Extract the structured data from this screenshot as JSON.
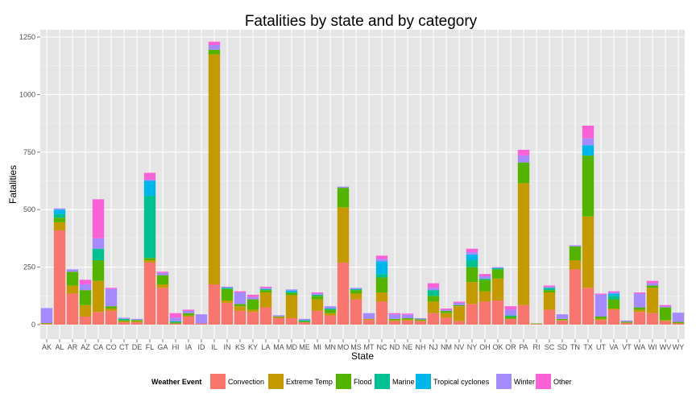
{
  "chart_data": {
    "type": "bar",
    "stacked": true,
    "title": "Fatalities by state and by category",
    "xlabel": "State",
    "ylabel": "Fatalities",
    "ylim": [
      0,
      1300
    ],
    "yticks": [
      0,
      250,
      500,
      750,
      1000,
      1250
    ],
    "grid": true,
    "legend_position": "bottom",
    "legend_title": "Weather Event",
    "categories": [
      "AK",
      "AL",
      "AR",
      "AZ",
      "CA",
      "CO",
      "CT",
      "DE",
      "FL",
      "GA",
      "HI",
      "IA",
      "ID",
      "IL",
      "IN",
      "KS",
      "KY",
      "LA",
      "MA",
      "MD",
      "ME",
      "MI",
      "MN",
      "MO",
      "MS",
      "MT",
      "NC",
      "ND",
      "NE",
      "NH",
      "NJ",
      "NM",
      "NV",
      "NY",
      "OH",
      "OK",
      "OR",
      "PA",
      "RI",
      "SC",
      "SD",
      "TN",
      "TX",
      "UT",
      "VA",
      "VT",
      "WA",
      "WI",
      "WV",
      "WY"
    ],
    "series": [
      {
        "name": "Convection",
        "color": "#F8766D",
        "values": [
          3,
          410,
          135,
          35,
          55,
          60,
          10,
          10,
          270,
          160,
          5,
          35,
          5,
          175,
          95,
          60,
          55,
          75,
          28,
          28,
          10,
          60,
          40,
          270,
          110,
          20,
          100,
          15,
          18,
          15,
          50,
          30,
          15,
          90,
          100,
          105,
          25,
          85,
          3,
          65,
          18,
          240,
          160,
          20,
          65,
          8,
          55,
          50,
          15,
          5
        ]
      },
      {
        "name": "Extreme Temp",
        "color": "#C49A00",
        "values": [
          2,
          35,
          35,
          50,
          135,
          10,
          5,
          5,
          10,
          15,
          0,
          5,
          0,
          1000,
          10,
          20,
          10,
          65,
          5,
          100,
          0,
          50,
          10,
          240,
          25,
          5,
          40,
          5,
          5,
          3,
          50,
          20,
          65,
          95,
          45,
          95,
          0,
          530,
          0,
          75,
          2,
          40,
          310,
          5,
          5,
          0,
          10,
          110,
          5,
          2
        ]
      },
      {
        "name": "Flood",
        "color": "#53B400",
        "values": [
          2,
          20,
          60,
          65,
          90,
          10,
          5,
          5,
          10,
          40,
          5,
          10,
          0,
          20,
          50,
          10,
          45,
          10,
          3,
          10,
          5,
          15,
          15,
          85,
          15,
          0,
          65,
          5,
          5,
          5,
          25,
          10,
          5,
          65,
          50,
          40,
          10,
          90,
          2,
          10,
          5,
          60,
          265,
          10,
          40,
          5,
          10,
          10,
          55,
          5
        ]
      },
      {
        "name": "Marine",
        "color": "#00C094",
        "values": [
          0,
          15,
          0,
          0,
          50,
          0,
          5,
          0,
          270,
          0,
          5,
          0,
          0,
          0,
          5,
          0,
          0,
          5,
          0,
          5,
          5,
          5,
          5,
          0,
          5,
          0,
          15,
          0,
          0,
          0,
          25,
          0,
          0,
          30,
          5,
          5,
          5,
          0,
          0,
          10,
          0,
          0,
          0,
          0,
          15,
          0,
          0,
          0,
          0,
          0
        ]
      },
      {
        "name": "Tropical cyclones",
        "color": "#00B6EB",
        "values": [
          0,
          20,
          0,
          0,
          0,
          0,
          0,
          0,
          65,
          0,
          0,
          0,
          0,
          0,
          0,
          0,
          0,
          0,
          0,
          5,
          0,
          0,
          0,
          0,
          0,
          0,
          55,
          0,
          0,
          0,
          0,
          0,
          0,
          25,
          0,
          0,
          0,
          0,
          0,
          0,
          0,
          0,
          45,
          0,
          10,
          0,
          0,
          0,
          0,
          0
        ]
      },
      {
        "name": "Winter",
        "color": "#A58AFF",
        "values": [
          65,
          5,
          10,
          25,
          45,
          75,
          5,
          5,
          5,
          10,
          15,
          10,
          40,
          20,
          5,
          50,
          10,
          5,
          5,
          5,
          5,
          5,
          10,
          5,
          5,
          25,
          10,
          20,
          15,
          5,
          10,
          5,
          10,
          10,
          10,
          5,
          25,
          30,
          0,
          5,
          20,
          5,
          30,
          95,
          5,
          5,
          60,
          10,
          5,
          40
        ]
      },
      {
        "name": "Other",
        "color": "#FB61D7",
        "values": [
          0,
          0,
          0,
          20,
          170,
          5,
          0,
          0,
          30,
          5,
          20,
          5,
          0,
          15,
          0,
          5,
          10,
          5,
          0,
          0,
          0,
          5,
          0,
          0,
          0,
          0,
          15,
          5,
          5,
          0,
          20,
          5,
          5,
          15,
          10,
          0,
          15,
          25,
          0,
          5,
          0,
          0,
          55,
          5,
          5,
          0,
          5,
          10,
          5,
          0
        ]
      }
    ]
  }
}
